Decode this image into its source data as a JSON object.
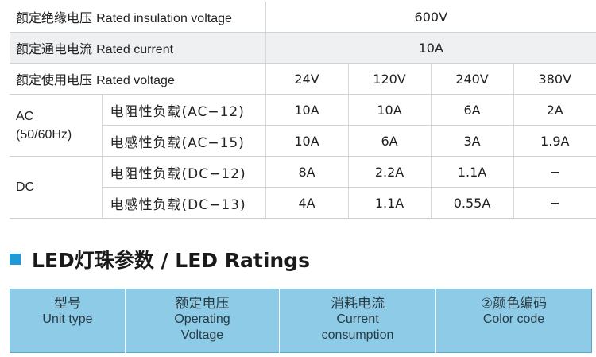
{
  "specs": {
    "rated_insulation_voltage": {
      "cn": "额定绝缘电压",
      "en": "Rated insulation voltage",
      "value": "600V"
    },
    "rated_current": {
      "cn": "额定通电电流",
      "en": "Rated current",
      "value": "10A"
    },
    "rated_voltage": {
      "cn": "额定使用电压",
      "en": "Rated voltage",
      "columns": [
        "24V",
        "120V",
        "240V",
        "380V"
      ]
    },
    "ac": {
      "label_line1": "AC",
      "label_line2": "(50/60Hz)",
      "rows": [
        {
          "label": "电阻性负载(AC−12)",
          "values": [
            "10A",
            "10A",
            "6A",
            "2A"
          ]
        },
        {
          "label": "电感性负载(AC−15)",
          "values": [
            "10A",
            "6A",
            "3A",
            "1.9A"
          ]
        }
      ]
    },
    "dc": {
      "label": "DC",
      "rows": [
        {
          "label": "电阻性负载(DC−12)",
          "values": [
            "8A",
            "2.2A",
            "1.1A",
            "−"
          ]
        },
        {
          "label": "电感性负载(DC−13)",
          "values": [
            "4A",
            "1.1A",
            "0.55A",
            "−"
          ]
        }
      ]
    }
  },
  "led_section": {
    "title": "LED灯珠参数 / LED Ratings",
    "accent_color": "#1e9ad6",
    "header_bg": "#8dcbe6",
    "columns": [
      {
        "cn": "型号",
        "en_lines": [
          "Unit type"
        ]
      },
      {
        "cn": "额定电压",
        "en_lines": [
          "Operating",
          "Voltage"
        ]
      },
      {
        "cn": "消耗电流",
        "en_lines": [
          "Current",
          "consumption"
        ]
      },
      {
        "cn": "②颜色编码",
        "en_lines": [
          "Color code"
        ]
      }
    ]
  }
}
